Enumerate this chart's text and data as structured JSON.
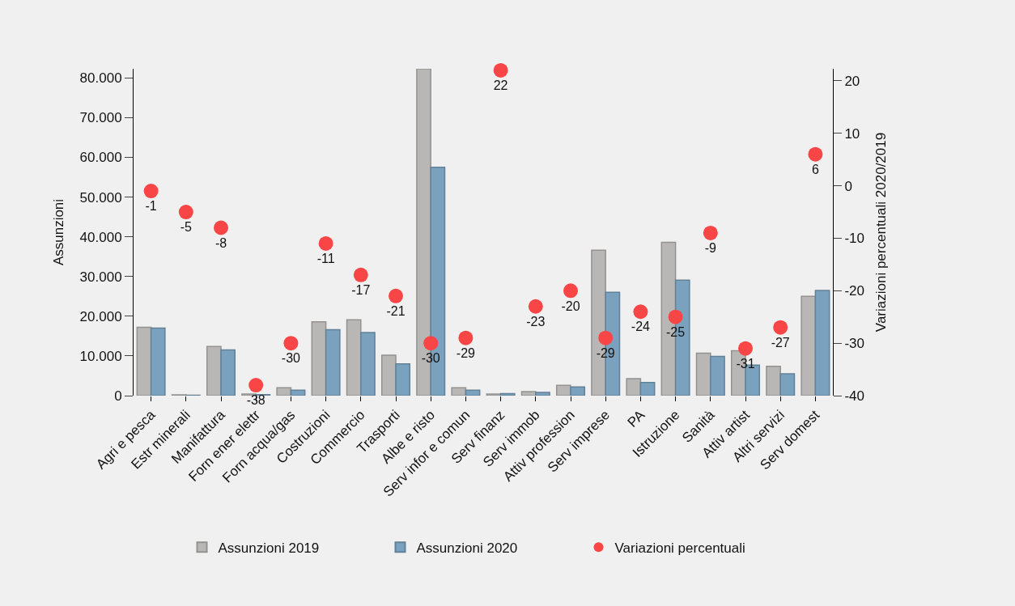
{
  "chart_data": {
    "type": "bar",
    "xlabel": null,
    "ylabel": "Assunzioni",
    "y2label": "Variazioni percentuali 2020/2019",
    "categories": [
      "Agri e pesca",
      "Estr minerali",
      "Manifattura",
      "Forn ener elettr",
      "Forn acqua/gas",
      "Costruzioni",
      "Commercio",
      "Trasporti",
      "Albe e risto",
      "Serv infor e comun",
      "Serv finanz",
      "Serv immob",
      "Attiv profession",
      "Serv imprese",
      "PA",
      "Istruzione",
      "Sanità",
      "Attiv artist",
      "Altri servizi",
      "Serv domest"
    ],
    "series": [
      {
        "name": "Assunzioni 2019",
        "color": "#b8b7b5",
        "values": [
          17200,
          200,
          12400,
          400,
          2000,
          18600,
          19100,
          10200,
          82300,
          2000,
          400,
          1000,
          2600,
          36600,
          4300,
          38600,
          10700,
          11300,
          7400,
          25000
        ]
      },
      {
        "name": "Assunzioni 2020",
        "color": "#7aa2bf",
        "values": [
          17000,
          100,
          11500,
          250,
          1400,
          16600,
          15900,
          8000,
          57500,
          1400,
          500,
          800,
          2200,
          26000,
          3300,
          29100,
          9900,
          7700,
          5500,
          26500
        ]
      },
      {
        "name": "Variazioni percentuali",
        "type": "scatter",
        "axis": "y2",
        "color": "#f84646",
        "marker": "circle",
        "data_labels": true,
        "values": [
          -1,
          -5,
          -8,
          -38,
          -30,
          -11,
          -17,
          -21,
          -30,
          -29,
          22,
          -23,
          -20,
          -29,
          -24,
          -25,
          -9,
          -31,
          -27,
          6
        ]
      }
    ],
    "ylim": [
      0,
      82300
    ],
    "yticks": [
      {
        "value": 0,
        "label": "0"
      },
      {
        "value": 10000,
        "label": "10.000"
      },
      {
        "value": 20000,
        "label": "20.000"
      },
      {
        "value": 30000,
        "label": "30.000"
      },
      {
        "value": 40000,
        "label": "40.000"
      },
      {
        "value": 50000,
        "label": "50.000"
      },
      {
        "value": 60000,
        "label": "60.000"
      },
      {
        "value": 70000,
        "label": "70.000"
      },
      {
        "value": 80000,
        "label": "80.000"
      }
    ],
    "y2lim": [
      -40,
      22.3
    ],
    "y2ticks": [
      -40,
      -30,
      -20,
      -10,
      0,
      10,
      20
    ],
    "grid": false,
    "legend": "bottom"
  }
}
